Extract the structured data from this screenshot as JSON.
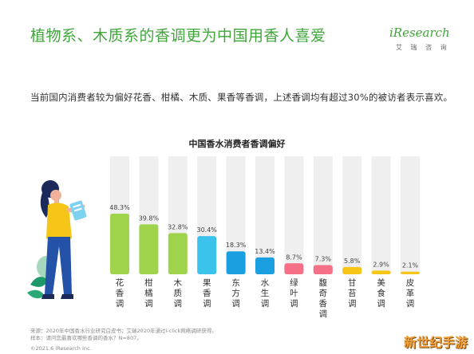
{
  "header": {
    "title": "植物系、木质系的香调更为中国用香人喜爱",
    "brand_name": "iResearch",
    "brand_sub": "艾 瑞 咨 询",
    "brand_color": "#3fa63a"
  },
  "summary": "当前国内消费者较为偏好花香、柑橘、木质、果香等香调，上述香调均有超过30%的被访者表示喜欢。",
  "chart_data": {
    "type": "bar",
    "title": "中国香水消费者香调偏好",
    "unit": "%",
    "ylim": [
      0,
      50
    ],
    "categories": [
      "花香调",
      "柑橘调",
      "木质调",
      "果香调",
      "东方调",
      "水生调",
      "绿叶调",
      "馥奇香调",
      "甘苔调",
      "美食调",
      "皮革调"
    ],
    "values": [
      48.3,
      39.8,
      32.8,
      30.4,
      18.3,
      13.4,
      8.7,
      7.3,
      5.8,
      2.9,
      2.1
    ],
    "value_labels": [
      "48.3%",
      "39.8%",
      "32.8%",
      "30.4%",
      "18.3%",
      "13.4%",
      "8.7%",
      "7.3%",
      "5.8%",
      "2.9%",
      "2.1%"
    ],
    "colors": [
      "#9ed34b",
      "#9ed34b",
      "#9ed34b",
      "#3cc3ec",
      "#1a9fe0",
      "#1a9fe0",
      "#f56f87",
      "#f56f87",
      "#f5c518",
      "#f5c518",
      "#f5c518"
    ],
    "bar_bg_color": "#efefef",
    "grid": false,
    "legend": "none"
  },
  "footer": {
    "source_line1": "来源：2020年中国香水行业研究白皮书；艾瑞2020年通过i-click网络调研获得。",
    "source_line2": "样本：请问您最喜欢哪些香调的香水？N=807。",
    "copyright": "©2021.6 iResearch Inc.",
    "watermark": "新世纪手游"
  }
}
